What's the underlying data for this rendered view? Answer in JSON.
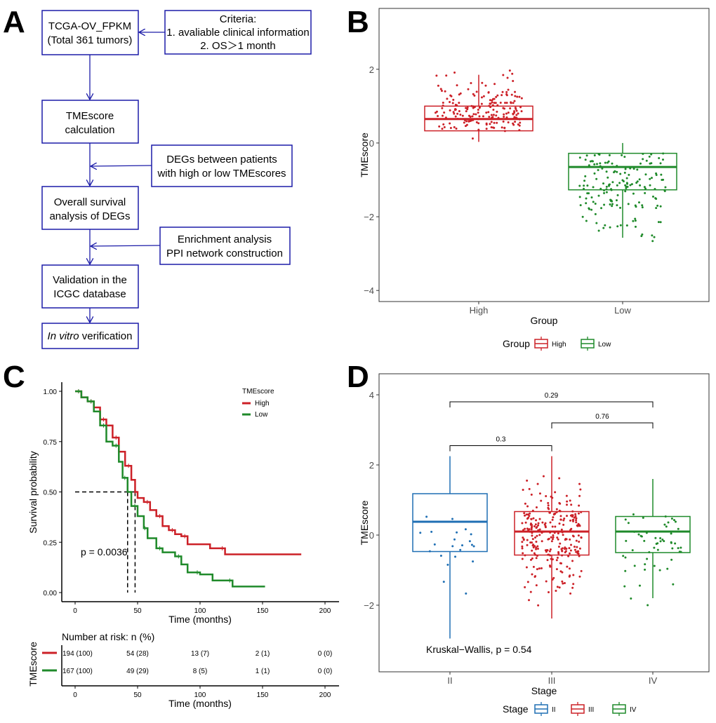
{
  "panel_letters": [
    "A",
    "B",
    "C",
    "D"
  ],
  "panel_a": {
    "boxes": [
      {
        "lines": [
          "TCGA-OV_FPKM",
          "(Total 361 tumors)"
        ]
      },
      {
        "lines": [
          "Criteria:",
          "1. avaliable clinical information",
          "2. OS＞1 month"
        ]
      },
      {
        "lines": [
          "TMEscore",
          "calculation"
        ]
      },
      {
        "lines": [
          "DEGs between patients",
          "with high or low TMEscores"
        ]
      },
      {
        "lines": [
          "Overall survival",
          "analysis of DEGs"
        ]
      },
      {
        "lines": [
          "Enrichment analysis",
          "PPI network construction"
        ]
      },
      {
        "lines": [
          "Validation in the",
          "ICGC database"
        ]
      },
      {
        "lines_italic": "In vitro",
        "lines_rest": " verification"
      }
    ],
    "colors": {
      "border": "#1c1ca8"
    }
  },
  "chart_data": [
    {
      "panel": "B",
      "type": "boxplot",
      "xlabel": "Group",
      "ylabel": "TMEscore",
      "categories": [
        "High",
        "Low"
      ],
      "yticks": [
        "−4",
        "−2",
        "0",
        "2"
      ],
      "ytick_values": [
        -4,
        -2,
        0,
        2
      ],
      "ylim": [
        -4.3,
        3.65
      ],
      "boxes": [
        {
          "name": "High",
          "q1": 0.33,
          "median": 0.65,
          "q3": 1.0,
          "whisker_low": 0.03,
          "whisker_high": 1.85,
          "point_min": 0.0,
          "point_max": 2.25,
          "n": 194,
          "color": "#cc2027"
        },
        {
          "name": "Low",
          "q1": -1.27,
          "median": -0.65,
          "q3": -0.28,
          "whisker_low": -2.57,
          "whisker_high": 0.0,
          "point_min": -2.95,
          "point_max": 0.0,
          "n": 167,
          "color": "#1f8a2a"
        }
      ],
      "legend": {
        "title": "Group",
        "items": [
          "High",
          "Low"
        ],
        "position": "bottom"
      }
    },
    {
      "panel": "C",
      "type": "line",
      "subtype": "kaplan-meier",
      "xlabel": "Time (months)",
      "ylabel": "Survival probability",
      "xticks": [
        0,
        50,
        100,
        150,
        200
      ],
      "yticks": [
        "0.00",
        "0.25",
        "0.50",
        "0.75",
        "1.00"
      ],
      "ytick_values": [
        0,
        0.25,
        0.5,
        0.75,
        1
      ],
      "xlim": [
        -10,
        210
      ],
      "ylim": [
        0,
        1
      ],
      "annotation": "p = 0.0036",
      "medians": [
        42,
        48
      ],
      "legend": {
        "title": "TMEscore",
        "items": [
          "High",
          "Low"
        ],
        "position": "top-right"
      },
      "series": [
        {
          "name": "High",
          "color": "#cc2027",
          "x": [
            0,
            5,
            10,
            15,
            20,
            25,
            30,
            35,
            40,
            45,
            48,
            50,
            55,
            60,
            65,
            70,
            75,
            80,
            85,
            90,
            108,
            120,
            181
          ],
          "y": [
            1,
            0.97,
            0.95,
            0.92,
            0.86,
            0.83,
            0.77,
            0.7,
            0.63,
            0.56,
            0.5,
            0.47,
            0.45,
            0.41,
            0.38,
            0.33,
            0.31,
            0.29,
            0.28,
            0.24,
            0.22,
            0.19,
            0.19
          ]
        },
        {
          "name": "Low",
          "color": "#1f8a2a",
          "x": [
            0,
            5,
            10,
            15,
            20,
            25,
            30,
            35,
            38,
            42,
            45,
            50,
            55,
            58,
            65,
            70,
            80,
            85,
            90,
            100,
            110,
            126,
            152
          ],
          "y": [
            1,
            0.97,
            0.95,
            0.9,
            0.83,
            0.75,
            0.73,
            0.65,
            0.57,
            0.5,
            0.43,
            0.38,
            0.32,
            0.27,
            0.22,
            0.2,
            0.18,
            0.14,
            0.1,
            0.09,
            0.06,
            0.03,
            0.03
          ]
        }
      ],
      "risk_table": {
        "title": "Number at risk: n (%)",
        "strata_label": "TMEscore",
        "xlabel": "Time (months)",
        "rows": [
          {
            "name": "High",
            "color": "#cc2027",
            "values": [
              "194 (100)",
              "54 (28)",
              "13 (7)",
              "2 (1)",
              "0 (0)"
            ]
          },
          {
            "name": "Low",
            "color": "#1f8a2a",
            "values": [
              "167 (100)",
              "49 (29)",
              "8 (5)",
              "1 (1)",
              "0 (0)"
            ]
          }
        ]
      }
    },
    {
      "panel": "D",
      "type": "boxplot",
      "xlabel": "Stage",
      "ylabel": "TMEscore",
      "categories": [
        "II",
        "III",
        "IV"
      ],
      "yticks": [
        "−2",
        "0",
        "2",
        "4"
      ],
      "ytick_values": [
        -2,
        0,
        2,
        4
      ],
      "ylim": [
        -3.9,
        4.6
      ],
      "annotation": "Kruskal−Wallis, p = 0.54",
      "comparisons": [
        {
          "from": 0,
          "to": 1,
          "label": "0.3",
          "y": 2.55
        },
        {
          "from": 1,
          "to": 2,
          "label": "0.76",
          "y": 3.2
        },
        {
          "from": 0,
          "to": 2,
          "label": "0.29",
          "y": 3.8
        }
      ],
      "boxes": [
        {
          "name": "II",
          "q1": -0.47,
          "median": 0.38,
          "q3": 1.18,
          "whisker_low": -2.95,
          "whisker_high": 2.25,
          "point_min": -2.95,
          "point_max": 2.25,
          "n": 22,
          "color": "#1f6fb4"
        },
        {
          "name": "III",
          "q1": -0.57,
          "median": 0.1,
          "q3": 0.67,
          "whisker_low": -2.38,
          "whisker_high": 2.25,
          "point_min": -2.6,
          "point_max": 2.25,
          "n": 270,
          "color": "#cc2027"
        },
        {
          "name": "IV",
          "q1": -0.5,
          "median": 0.1,
          "q3": 0.53,
          "whisker_low": -1.8,
          "whisker_high": 1.6,
          "point_min": -2.2,
          "point_max": 1.6,
          "n": 55,
          "color": "#1f8a2a"
        }
      ],
      "legend": {
        "title": "Stage",
        "items": [
          "II",
          "III",
          "IV"
        ],
        "position": "bottom"
      }
    }
  ]
}
